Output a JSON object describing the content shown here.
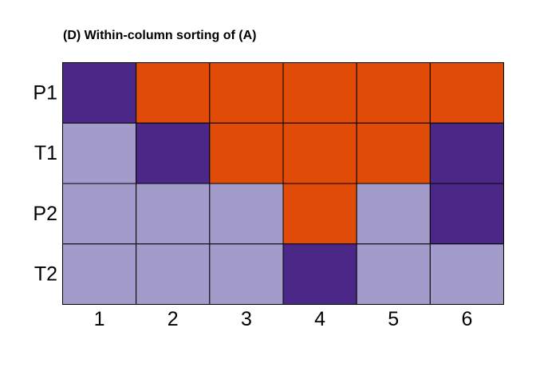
{
  "chart_data": {
    "type": "heatmap",
    "title": "(D)  Within-column sorting of (A)",
    "xlabel": "",
    "ylabel": "",
    "columns": [
      "1",
      "2",
      "3",
      "4",
      "5",
      "6"
    ],
    "rows": [
      "P1",
      "T1",
      "P2",
      "T2"
    ],
    "categories": {
      "0": "light-purple",
      "1": "dark-purple",
      "2": "orange"
    },
    "colors": {
      "0": "#a39bca",
      "1": "#4b2888",
      "2": "#e04b07"
    },
    "values": [
      [
        1,
        2,
        2,
        2,
        2,
        2
      ],
      [
        0,
        1,
        2,
        2,
        2,
        1
      ],
      [
        0,
        0,
        0,
        2,
        0,
        1
      ],
      [
        0,
        0,
        0,
        1,
        0,
        0
      ]
    ],
    "grid": true,
    "legend": "none"
  }
}
